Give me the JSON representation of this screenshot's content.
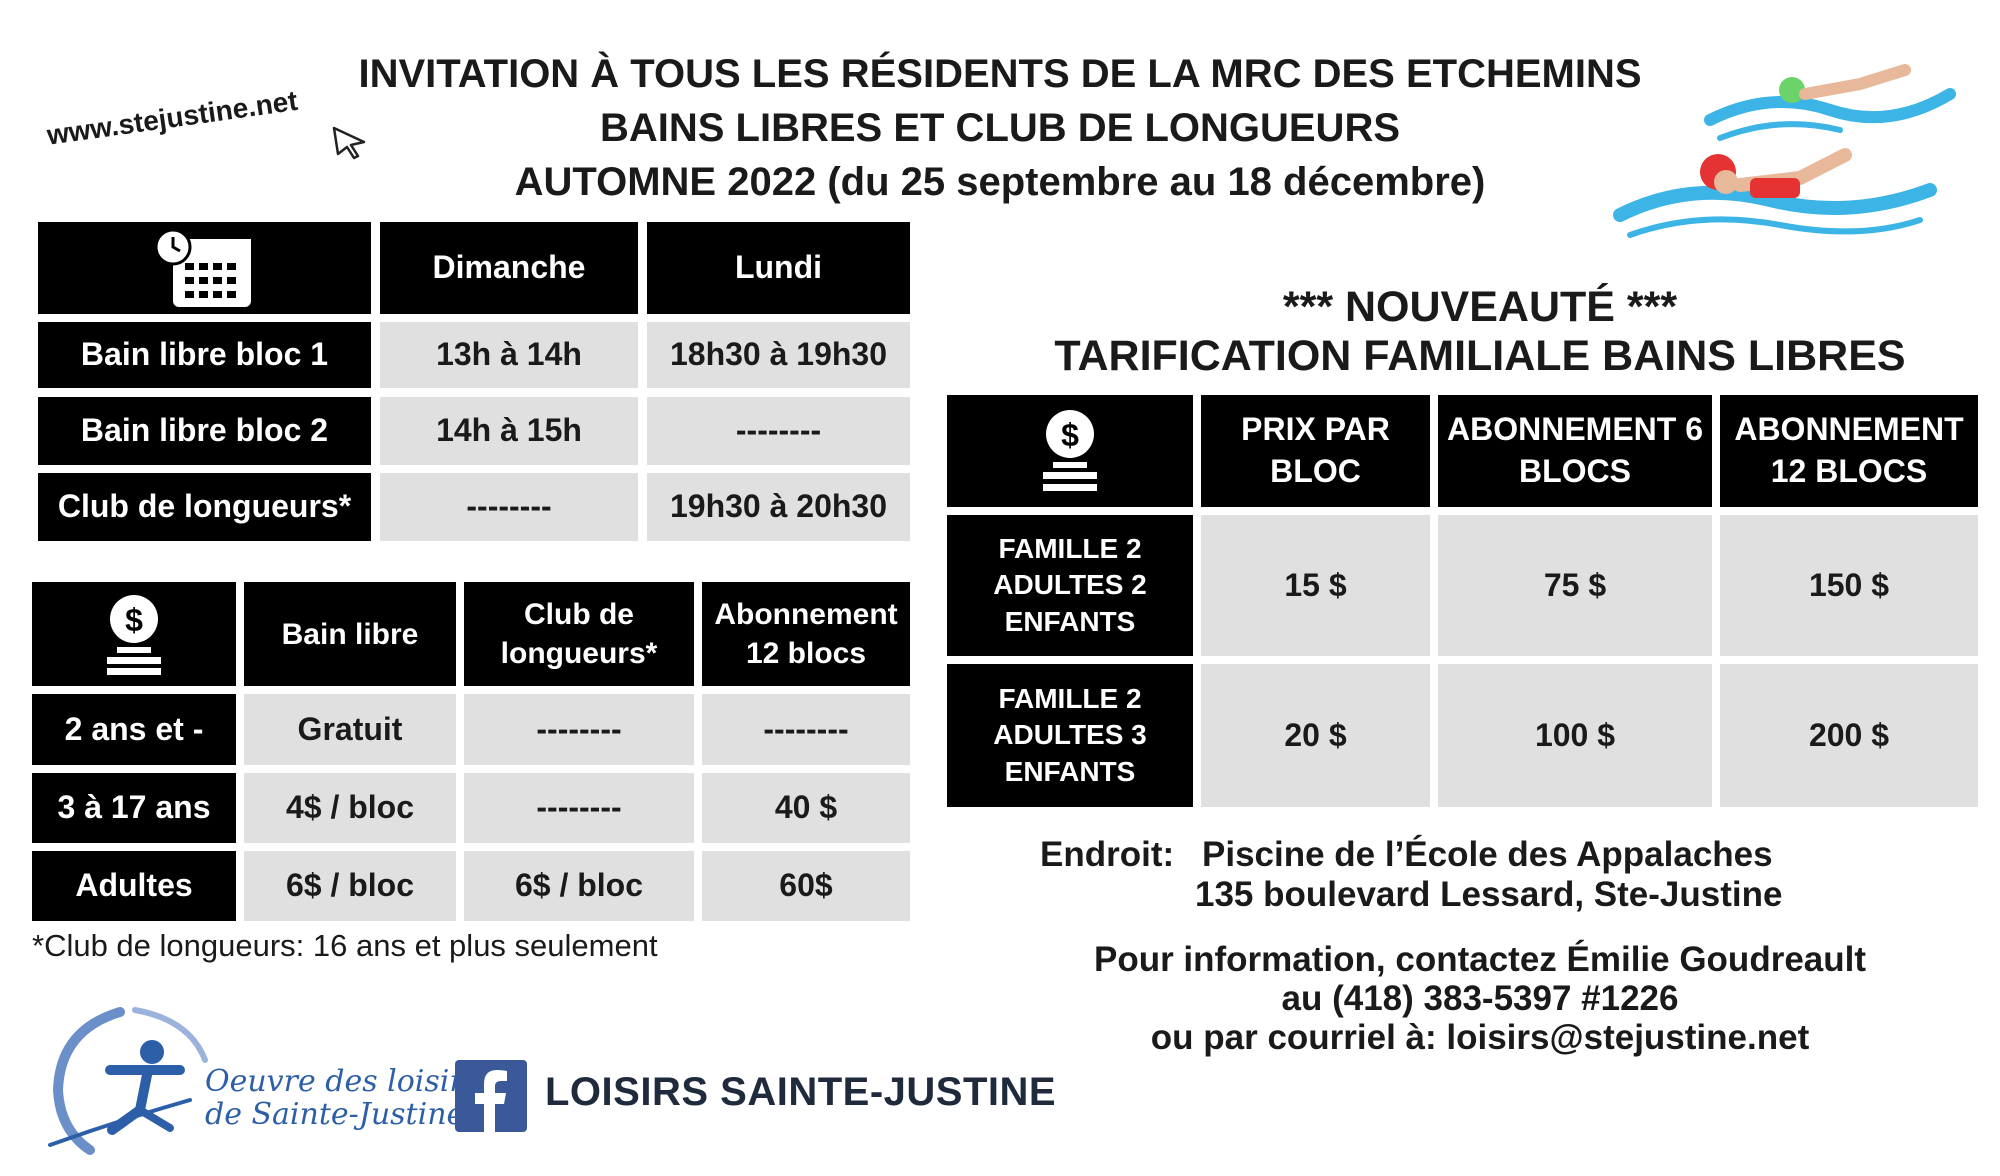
{
  "header": {
    "line1": "INVITATION À TOUS LES RÉSIDENTS DE LA MRC DES ETCHEMINS",
    "line2": "BAINS LIBRES ET CLUB DE LONGUEURS",
    "line3": "AUTOMNE 2022 (du 25 septembre au 18 décembre)",
    "website": "www.stejustine.net"
  },
  "schedule": {
    "icon": "calendar-clock-icon",
    "columns": [
      "Dimanche",
      "Lundi"
    ],
    "rows": [
      {
        "label": "Bain libre bloc 1",
        "cells": [
          "13h à 14h",
          "18h30 à 19h30"
        ]
      },
      {
        "label": "Bain libre bloc 2",
        "cells": [
          "14h à 15h",
          "--------"
        ]
      },
      {
        "label": "Club de longueurs*",
        "cells": [
          "--------",
          "19h30 à 20h30"
        ]
      }
    ]
  },
  "pricing": {
    "icon": "money-coins-icon",
    "columns": [
      "Bain libre",
      "Club de longueurs*",
      "Abonnement 12 blocs"
    ],
    "rows": [
      {
        "label": "2 ans et -",
        "cells": [
          "Gratuit",
          "--------",
          "--------"
        ]
      },
      {
        "label": "3 à 17 ans",
        "cells": [
          "4$ / bloc",
          "--------",
          "40 $"
        ]
      },
      {
        "label": "Adultes",
        "cells": [
          "6$ / bloc",
          "6$ / bloc",
          "60$"
        ]
      }
    ],
    "footnote": "*Club de longueurs: 16 ans et plus seulement"
  },
  "family": {
    "heading1": "*** NOUVEAUTÉ ***",
    "heading2": "TARIFICATION FAMILIALE BAINS LIBRES",
    "icon": "money-coins-icon",
    "columns": [
      "PRIX PAR BLOC",
      "ABONNEMENT 6 BLOCS",
      "ABONNEMENT 12 BLOCS"
    ],
    "rows": [
      {
        "label": "FAMILLE 2 ADULTES 2 ENFANTS",
        "cells": [
          "15 $",
          "75 $",
          "150 $"
        ]
      },
      {
        "label": "FAMILLE 2 ADULTES 3 ENFANTS",
        "cells": [
          "20 $",
          "100 $",
          "200 $"
        ]
      }
    ]
  },
  "location": {
    "label": "Endroit:",
    "line1": "Piscine de l’École des Appalaches",
    "line2": "135 boulevard Lessard, Ste-Justine"
  },
  "contact": {
    "line1": "Pour information, contactez Émilie Goudreault",
    "line2": "au (418) 383-5397 #1226",
    "line3": "ou par courriel à: loisirs@stejustine.net"
  },
  "footer": {
    "logo_line1": "Oeuvre des loisirs",
    "logo_line2": "de Sainte-Justine",
    "facebook_label": "LOISIRS SAINTE-JUSTINE"
  },
  "colors": {
    "black": "#000000",
    "gray": "#e0e0e0",
    "brand_blue": "#2d5fa8",
    "facebook": "#3b5998",
    "water": "#3cb4e5"
  }
}
